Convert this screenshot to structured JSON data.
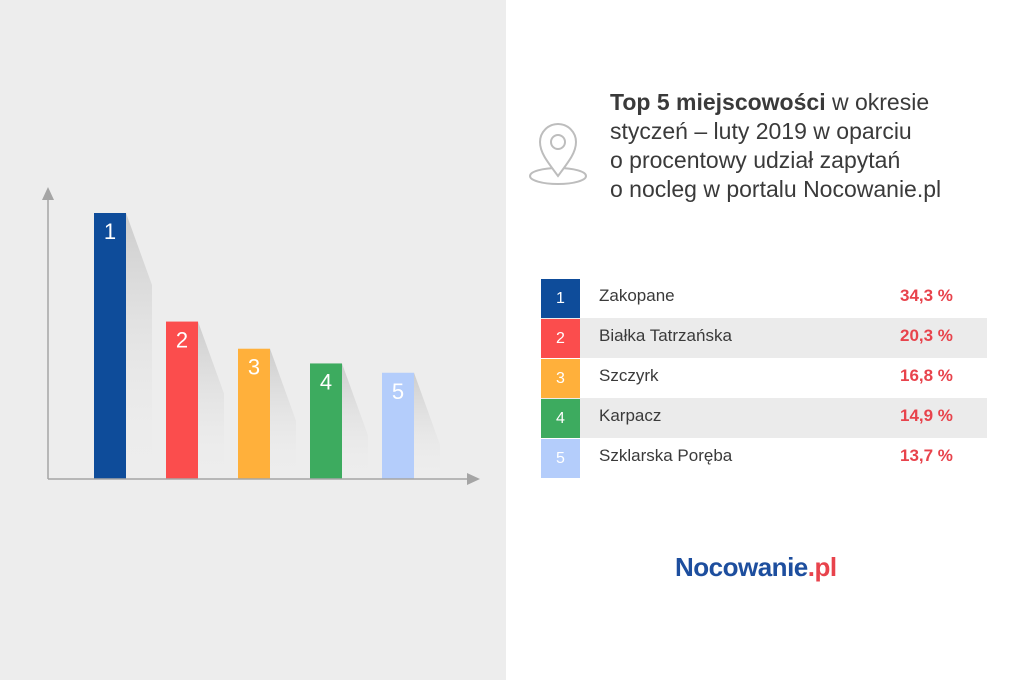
{
  "title": {
    "bold": "Top 5 miejscowości",
    "line1_rest": " w okresie",
    "line2": "styczeń – luty 2019 w oparciu",
    "line3": "o procentowy udział zapytań",
    "line4": "o nocleg w portalu Nocowanie.pl"
  },
  "icon": "map-pin-icon",
  "logo": {
    "main": "Nocowanie",
    "dot": ".",
    "tld": "pl"
  },
  "colors": {
    "navy": "#0e4c9a",
    "red": "#fb4d4d",
    "orange": "#ffb03b",
    "green": "#3dab5f",
    "lightblue": "#b4cdfb",
    "percent": "#e8434c",
    "logo_blue": "#1d4e9e"
  },
  "ranking": [
    {
      "rank": "1",
      "name": "Zakopane",
      "percent": "34,3 %",
      "color": "#0e4c9a"
    },
    {
      "rank": "2",
      "name": "Białka Tatrzańska",
      "percent": "20,3 %",
      "color": "#fb4d4d"
    },
    {
      "rank": "3",
      "name": "Szczyrk",
      "percent": "16,8 %",
      "color": "#ffb03b"
    },
    {
      "rank": "4",
      "name": "Karpacz",
      "percent": "14,9 %",
      "color": "#3dab5f"
    },
    {
      "rank": "5",
      "name": "Szklarska Poręba",
      "percent": "13,7 %",
      "color": "#b4cdfb"
    }
  ],
  "chart_data": {
    "type": "bar",
    "categories": [
      "1",
      "2",
      "3",
      "4",
      "5"
    ],
    "values": [
      34.3,
      20.3,
      16.8,
      14.9,
      13.7
    ],
    "colors": [
      "#0e4c9a",
      "#fb4d4d",
      "#ffb03b",
      "#3dab5f",
      "#b4cdfb"
    ],
    "ylim": [
      0,
      34.3
    ],
    "grid": false,
    "legend": "right table"
  }
}
